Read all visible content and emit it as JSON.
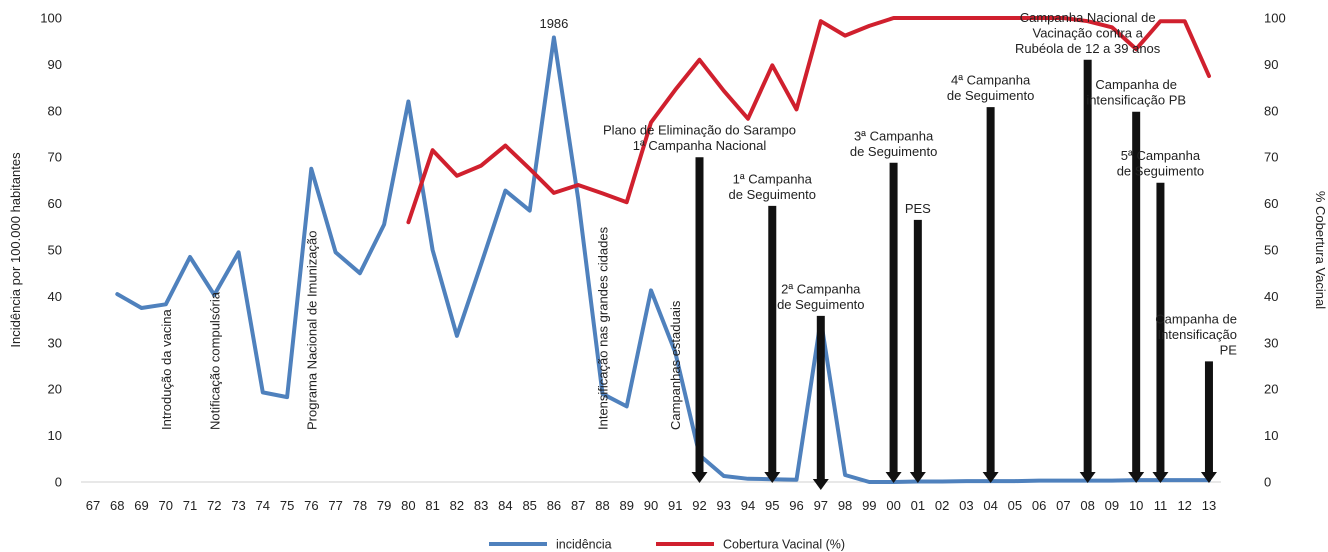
{
  "chart_data": {
    "type": "line",
    "x_categories": [
      "67",
      "68",
      "69",
      "70",
      "71",
      "72",
      "73",
      "74",
      "75",
      "76",
      "77",
      "78",
      "79",
      "80",
      "81",
      "82",
      "83",
      "84",
      "85",
      "86",
      "87",
      "88",
      "89",
      "90",
      "91",
      "92",
      "93",
      "94",
      "95",
      "96",
      "97",
      "98",
      "99",
      "00",
      "01",
      "02",
      "03",
      "04",
      "05",
      "06",
      "07",
      "08",
      "09",
      "10",
      "11",
      "12",
      "13"
    ],
    "ylabel_left": "Incidência por 100.000 habitantes",
    "ylabel_right": "% Cobertura Vacinal",
    "ylim": [
      0,
      100
    ],
    "yticks": [
      0,
      10,
      20,
      30,
      40,
      50,
      60,
      70,
      80,
      90,
      100
    ],
    "grid": false,
    "legend_position": "bottom-center",
    "series": [
      {
        "name": "incidência",
        "color": "#4F81BD",
        "axis": "left",
        "x": [
          "68",
          "69",
          "70",
          "71",
          "72",
          "73",
          "74",
          "75",
          "76",
          "77",
          "78",
          "79",
          "80",
          "81",
          "82",
          "83",
          "84",
          "85",
          "86",
          "87",
          "88",
          "89",
          "90",
          "91",
          "92",
          "93",
          "94",
          "95",
          "96",
          "97",
          "98",
          "99",
          "00",
          "01",
          "02",
          "03",
          "04",
          "05",
          "06",
          "07",
          "08",
          "09",
          "10",
          "11",
          "12",
          "13"
        ],
        "values": [
          40.5,
          37.5,
          38.3,
          48.5,
          40.3,
          49.5,
          19.3,
          18.3,
          67.5,
          49.5,
          45,
          55.5,
          82,
          50,
          31.5,
          47,
          62.8,
          58.5,
          95.8,
          61,
          19,
          16.3,
          41.3,
          28,
          5.8,
          1.3,
          0.7,
          0.6,
          0.5,
          35,
          1.5,
          0,
          0,
          0.1,
          0.1,
          0.2,
          0.2,
          0.2,
          0.3,
          0.3,
          0.3,
          0.3,
          0.4,
          0.4,
          0.4,
          0.4
        ]
      },
      {
        "name": "Cobertura Vacinal (%)",
        "color": "#D0202E",
        "axis": "right",
        "x": [
          "80",
          "81",
          "82",
          "83",
          "84",
          "85",
          "86",
          "87",
          "88",
          "89",
          "90",
          "91",
          "92",
          "93",
          "94",
          "95",
          "96",
          "97",
          "98",
          "99",
          "00",
          "01",
          "02",
          "03",
          "04",
          "05",
          "06",
          "07",
          "08",
          "09",
          "10",
          "11",
          "12",
          "13"
        ],
        "values": [
          56,
          71.5,
          66,
          68.2,
          72.5,
          67.5,
          62.3,
          64,
          62.2,
          60.3,
          77.5,
          84.5,
          91,
          84.3,
          78.3,
          89.8,
          80.3,
          99.3,
          96.2,
          98.3,
          100,
          100,
          100,
          100,
          100,
          100,
          100,
          100,
          99.3,
          98,
          93.3,
          99.3,
          99.3,
          87.5
        ]
      }
    ],
    "arrows": [
      {
        "x": "92",
        "top": 70,
        "label_lines": [
          "Plano de Eliminação do Sarampo",
          "1ª Campanha Nacional"
        ]
      },
      {
        "x": "95",
        "top": 59.5,
        "label_lines": [
          "1ª Campanha",
          "de Seguimento"
        ]
      },
      {
        "x": "97",
        "top": 35.8,
        "bottom": -1.5,
        "label_lines": [
          "2ª Campanha",
          "de Seguimento"
        ]
      },
      {
        "x": "00",
        "top": 68.8,
        "label_lines": [
          "3ª Campanha",
          "de Seguimento"
        ]
      },
      {
        "x": "01",
        "top": 56.5,
        "label_lines": [
          "PES"
        ]
      },
      {
        "x": "04",
        "top": 80.8,
        "label_lines": [
          "4ª Campanha",
          "de Seguimento"
        ]
      },
      {
        "x": "08",
        "top": 91,
        "label_lines": [
          "Campanha Nacional de",
          "Vacinação contra a",
          "Rubéola de 12 a 39 anos"
        ]
      },
      {
        "x": "10",
        "top": 79.8,
        "label_lines": [
          "Campanha de",
          "intensificação PB"
        ]
      },
      {
        "x": "11",
        "top": 64.5,
        "label_lines": [
          "5ª Campanha",
          "de Seguimento"
        ]
      },
      {
        "x": "13",
        "top": 26,
        "label_lines": [
          "Campanha de",
          "Intensificação",
          "PE"
        ]
      }
    ],
    "vertical_annotations": [
      {
        "x": "70",
        "text": "Introdução da vacina"
      },
      {
        "x": "72",
        "text": "Notificação compulsória"
      },
      {
        "x": "76",
        "text": "Programa Nacional de Imunização"
      },
      {
        "x": "88",
        "text": "Intensificação nas grandes cidades"
      },
      {
        "x": "91",
        "text": "Campanhas estaduais"
      }
    ],
    "peak_label": {
      "x": "86",
      "text": "1986"
    }
  }
}
